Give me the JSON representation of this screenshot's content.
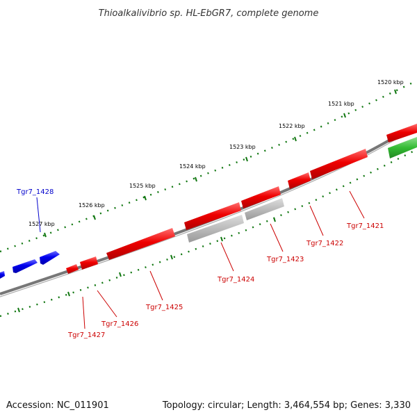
{
  "title": "Thioalkalivibrio sp. HL-EbGR7, complete genome",
  "footer": {
    "accession": "Accession: NC_011901",
    "summary": "Topology: circular; Length: 3,464,554 bp; Genes: 3,330"
  },
  "scale_labels": [
    "1520 kbp",
    "1521 kbp",
    "1522 kbp",
    "1523 kbp",
    "1524 kbp",
    "1525 kbp",
    "1526 kbp",
    "1527 kbp"
  ],
  "colors": {
    "forward_gene": "#0000ee",
    "reverse_gene": "#ee0000",
    "rna_gene": "#33bb33",
    "pseudo_gene": "#aaaaaa",
    "backbone": "#777777",
    "ticks": "#117711",
    "forward_label": "#0000cc",
    "reverse_label": "#cc0000"
  },
  "gene_labels": [
    {
      "name": "Tgr7_1421",
      "strand": "reverse"
    },
    {
      "name": "Tgr7_1422",
      "strand": "reverse"
    },
    {
      "name": "Tgr7_1423",
      "strand": "reverse"
    },
    {
      "name": "Tgr7_1424",
      "strand": "reverse"
    },
    {
      "name": "Tgr7_1425",
      "strand": "reverse"
    },
    {
      "name": "Tgr7_1426",
      "strand": "reverse"
    },
    {
      "name": "Tgr7_1427",
      "strand": "reverse"
    },
    {
      "name": "Tgr7_1428",
      "strand": "forward"
    }
  ]
}
